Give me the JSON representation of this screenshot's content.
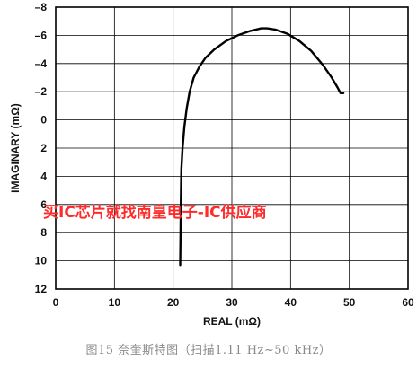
{
  "chart_data": {
    "type": "line",
    "xlabel": "REAL (mΩ)",
    "ylabel": "IMAGINARY (mΩ)",
    "xlim": [
      0,
      60
    ],
    "ylim": [
      -8,
      12
    ],
    "y_inverted": true,
    "x_ticks": [
      "0",
      "10",
      "20",
      "30",
      "40",
      "50",
      "60"
    ],
    "y_ticks": [
      "–8",
      "–6",
      "–4",
      "–2",
      "0",
      "2",
      "4",
      "6",
      "8",
      "10",
      "12"
    ],
    "grid": true,
    "series": [
      {
        "x": [
          21.2,
          21.3,
          21.4,
          21.6,
          21.9,
          22.3,
          22.8,
          23.5,
          24.5,
          25.5,
          27.0,
          29.0,
          31.0,
          33.0,
          35.0,
          36.0,
          37.5,
          39.5,
          41.5,
          43.5,
          45.5,
          47.0,
          48.0,
          48.5,
          49.0
        ],
        "y": [
          10.3,
          6.0,
          3.5,
          2.0,
          0.5,
          -0.8,
          -2.0,
          -3.0,
          -3.8,
          -4.4,
          -5.0,
          -5.6,
          -6.0,
          -6.3,
          -6.5,
          -6.5,
          -6.4,
          -6.1,
          -5.6,
          -4.9,
          -3.9,
          -3.0,
          -2.3,
          -1.9,
          -1.9
        ]
      }
    ],
    "line_color": "#000000"
  },
  "watermark": "买IC芯片就找南皇电子-IC供应商",
  "caption": "图15 奈奎斯特图（扫描1.11 Hz~50 kHz）"
}
